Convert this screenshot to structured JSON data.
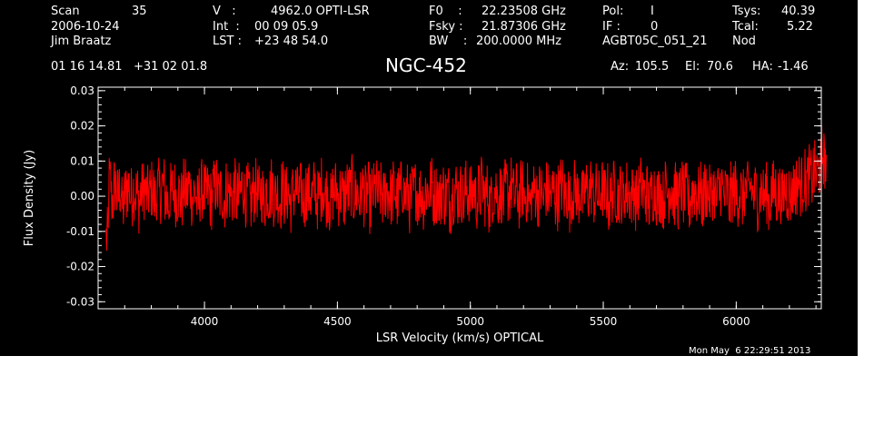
{
  "header": {
    "scan_label": "Scan",
    "scan_value": "35",
    "date": "2006-10-24",
    "observer": "Jim Braatz",
    "v_label": "V   :",
    "v_value": "4962.0 OPTI-LSR",
    "int_label": "Int  :",
    "int_value": "00 09 05.9",
    "lst_label": "LST :",
    "lst_value": "+23 48 54.0",
    "f0_label": "F0    :",
    "f0_value": "22.23508 GHz",
    "fsky_label": "Fsky :",
    "fsky_value": "21.87306 GHz",
    "bw_label": "BW    :",
    "bw_value": "200.0000 MHz",
    "pol_label": "Pol:",
    "pol_value": "I",
    "if_label": "IF :",
    "if_value": "0",
    "project": "AGBT05C_051_21",
    "tsys_label": "Tsys:",
    "tsys_value": "40.39",
    "tcal_label": "Tcal:",
    "tcal_value": "5.22",
    "mode": "Nod",
    "coords": "01 16 14.81   +31 02 01.8",
    "source": "NGC-452",
    "az_label": "Az:",
    "az_value": "105.5",
    "el_label": "El:",
    "el_value": "70.6",
    "ha_label": "HA:",
    "ha_value": "-1.46"
  },
  "footer": {
    "timestamp": "Mon May  6 22:29:51 2013"
  },
  "chart_data": {
    "type": "line",
    "xlabel": "LSR Velocity (km/s) OPTICAL",
    "ylabel": "Flux Density (Jy)",
    "xlim": [
      3600,
      6320
    ],
    "ylim": [
      -0.032,
      0.031
    ],
    "xticks": [
      4000,
      4500,
      5000,
      5500,
      6000
    ],
    "xtick_labels": [
      "4000",
      "4500",
      "5000",
      "5500",
      "6000"
    ],
    "yticks": [
      -0.03,
      -0.02,
      -0.01,
      0.0,
      0.01,
      0.02,
      0.03
    ],
    "ytick_labels": [
      "-0.03",
      "-0.02",
      "-0.01",
      "0.00",
      "0.01",
      "0.02",
      "0.03"
    ],
    "grid": false,
    "series": [
      {
        "color": "#ff0000",
        "x_range": [
          3630,
          6300
        ],
        "x_step": 10,
        "values": [
          -0.012,
          0.004,
          -0.001,
          0.003,
          0.0,
          0.002,
          -0.003,
          0.001,
          0.003,
          0.0,
          0.002,
          0.001,
          -0.002,
          0.001,
          0.002,
          0.0,
          0.001,
          0.002,
          -0.001,
          0.002,
          0.001,
          0.003,
          0.0,
          -0.002,
          0.001,
          0.002,
          0.0,
          0.001,
          -0.001,
          0.002,
          0.001,
          0.003,
          0.0,
          0.001,
          -0.002,
          0.001,
          0.002,
          0.0,
          0.001,
          -0.001,
          0.002,
          0.003,
          0.0,
          0.001,
          -0.001,
          0.002,
          0.001,
          0.0,
          0.002,
          -0.001,
          0.001,
          0.003,
          0.0,
          0.001,
          -0.002,
          0.001,
          0.002,
          0.0,
          0.001,
          -0.001,
          0.002,
          0.001,
          0.003,
          0.0,
          0.001,
          -0.001,
          0.002,
          0.0,
          0.001,
          -0.002,
          0.001,
          0.002,
          0.0,
          0.001,
          -0.001,
          0.002,
          0.001,
          0.0,
          0.002,
          -0.001,
          0.001,
          0.003,
          0.0,
          0.001,
          -0.002,
          0.001,
          0.002,
          0.0,
          0.001,
          -0.001,
          0.002,
          0.001,
          0.003,
          0.0,
          0.001,
          -0.001,
          0.002,
          0.0,
          0.001,
          -0.002,
          0.001,
          0.002,
          0.0,
          0.001,
          -0.001,
          0.002,
          0.001,
          0.0,
          0.002,
          -0.001,
          0.001,
          0.003,
          0.0,
          0.001,
          -0.002,
          0.001,
          0.002,
          0.0,
          0.001,
          -0.001,
          0.002,
          0.001,
          0.003,
          0.0,
          0.001,
          -0.001,
          0.002,
          0.0,
          0.001,
          -0.002,
          0.001,
          0.002,
          0.0,
          0.001,
          -0.001,
          0.002,
          0.001,
          0.0,
          0.002,
          -0.001,
          0.001,
          0.003,
          0.0,
          0.001,
          -0.002,
          0.001,
          0.002,
          0.0,
          0.001,
          -0.001,
          0.002,
          0.001,
          0.003,
          0.0,
          0.001,
          -0.001,
          0.002,
          0.0,
          0.001,
          -0.002,
          0.001,
          0.002,
          0.0,
          0.001,
          -0.001,
          0.002,
          0.001,
          0.0,
          0.002,
          -0.001,
          0.001,
          0.003,
          0.0,
          0.001,
          -0.002,
          0.001,
          0.002,
          0.0,
          0.001,
          -0.001,
          0.002,
          0.001,
          0.003,
          0.0,
          0.001,
          -0.001,
          0.002,
          0.0,
          0.001,
          -0.002,
          0.001,
          0.002,
          0.0,
          0.001,
          -0.001,
          0.002,
          0.001,
          0.0,
          0.002,
          -0.001,
          0.001,
          0.003,
          0.0,
          0.001,
          -0.002,
          0.001,
          0.002,
          0.0,
          0.001,
          -0.001,
          0.002,
          0.001,
          0.003,
          0.0,
          0.001,
          -0.001,
          0.002,
          0.0,
          0.001,
          -0.002,
          0.001,
          0.002,
          0.0,
          0.001,
          -0.001,
          0.002,
          0.001,
          0.0,
          0.002,
          -0.001,
          0.001,
          0.003,
          0.0,
          0.001,
          -0.002,
          0.001,
          0.002,
          0.0,
          0.001,
          -0.001,
          0.002,
          0.001,
          0.003,
          0.0,
          0.001,
          -0.001,
          0.002,
          0.0,
          0.001,
          -0.002,
          0.001,
          0.002,
          0.0,
          0.001,
          -0.001,
          0.002,
          0.001,
          0.0,
          0.002,
          0.003,
          0.004,
          0.003,
          0.005,
          0.004,
          0.006,
          0.005,
          0.007,
          0.006,
          0.008,
          0.012,
          0.01
        ]
      }
    ]
  }
}
